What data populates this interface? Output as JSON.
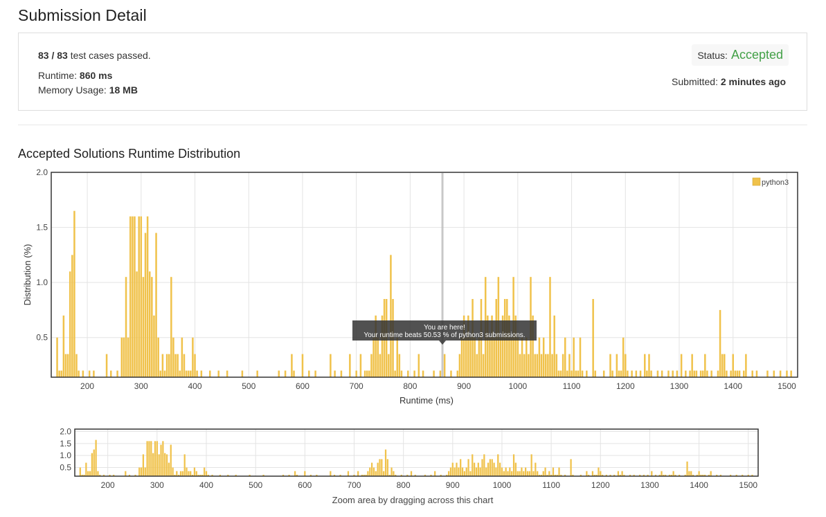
{
  "page": {
    "title": "Submission Detail"
  },
  "submission": {
    "tests_passed": "83 / 83",
    "tests_suffix": "test cases passed.",
    "runtime_label": "Runtime:",
    "runtime_value": "860 ms",
    "memory_label": "Memory Usage:",
    "memory_value": "18 MB",
    "status_label": "Status:",
    "status_value": "Accepted",
    "submitted_label": "Submitted:",
    "submitted_value": "2 minutes ago"
  },
  "colors": {
    "bar": "#f0c24b",
    "accepted": "#43a047",
    "tooltip_bg": "#333333"
  },
  "distribution": {
    "title": "Accepted Solutions Runtime Distribution"
  },
  "chart_data": [
    {
      "type": "bar",
      "title": "Accepted Solutions Runtime Distribution",
      "xlabel": "Runtime (ms)",
      "ylabel": "Distribution (%)",
      "xlim": [
        133,
        1520
      ],
      "ylim": [
        0.14,
        2.0
      ],
      "xticks": [
        200,
        300,
        400,
        500,
        600,
        700,
        800,
        900,
        1000,
        1100,
        1200,
        1300,
        1400,
        1500
      ],
      "yticks": [
        0.5,
        1.0,
        1.5,
        2.0
      ],
      "legend": {
        "label": "python3",
        "position": "top-right"
      },
      "marker": {
        "x": 860,
        "title": "You are here!",
        "text": "Your runtime beats 50.53 % of python3 submissions."
      },
      "series": [
        {
          "name": "python3",
          "bin_width": 4,
          "points": [
            [
              144,
              0.5
            ],
            [
              148,
              0.2
            ],
            [
              152,
              0.2
            ],
            [
              156,
              0.7
            ],
            [
              160,
              0.35
            ],
            [
              164,
              0.35
            ],
            [
              168,
              1.1
            ],
            [
              172,
              1.25
            ],
            [
              176,
              1.65
            ],
            [
              180,
              0.35
            ],
            [
              184,
              0.2
            ],
            [
              192,
              0.2
            ],
            [
              204,
              0.2
            ],
            [
              212,
              0.2
            ],
            [
              236,
              0.35
            ],
            [
              244,
              0.2
            ],
            [
              256,
              0.2
            ],
            [
              264,
              0.5
            ],
            [
              268,
              0.5
            ],
            [
              272,
              1.05
            ],
            [
              276,
              0.5
            ],
            [
              280,
              1.6
            ],
            [
              284,
              1.6
            ],
            [
              288,
              1.6
            ],
            [
              292,
              1.1
            ],
            [
              296,
              1.6
            ],
            [
              300,
              1.6
            ],
            [
              304,
              1.05
            ],
            [
              308,
              1.45
            ],
            [
              312,
              1.6
            ],
            [
              316,
              1.1
            ],
            [
              320,
              1.05
            ],
            [
              324,
              0.7
            ],
            [
              328,
              1.45
            ],
            [
              332,
              0.5
            ],
            [
              336,
              0.2
            ],
            [
              340,
              0.35
            ],
            [
              344,
              0.2
            ],
            [
              348,
              0.35
            ],
            [
              352,
              0.35
            ],
            [
              356,
              1.05
            ],
            [
              360,
              0.5
            ],
            [
              364,
              0.35
            ],
            [
              368,
              0.35
            ],
            [
              372,
              0.2
            ],
            [
              376,
              0.5
            ],
            [
              380,
              0.35
            ],
            [
              384,
              0.2
            ],
            [
              388,
              0.2
            ],
            [
              392,
              0.2
            ],
            [
              396,
              0.5
            ],
            [
              400,
              0.35
            ],
            [
              404,
              0.2
            ],
            [
              412,
              0.2
            ],
            [
              428,
              0.2
            ],
            [
              444,
              0.2
            ],
            [
              460,
              0.2
            ],
            [
              488,
              0.2
            ],
            [
              516,
              0.2
            ],
            [
              556,
              0.2
            ],
            [
              568,
              0.2
            ],
            [
              580,
              0.35
            ],
            [
              584,
              0.2
            ],
            [
              600,
              0.35
            ],
            [
              612,
              0.2
            ],
            [
              624,
              0.2
            ],
            [
              652,
              0.35
            ],
            [
              660,
              0.2
            ],
            [
              672,
              0.2
            ],
            [
              688,
              0.35
            ],
            [
              700,
              0.2
            ],
            [
              708,
              0.35
            ],
            [
              716,
              0.2
            ],
            [
              720,
              0.2
            ],
            [
              724,
              0.2
            ],
            [
              728,
              0.35
            ],
            [
              732,
              0.5
            ],
            [
              736,
              0.7
            ],
            [
              740,
              0.5
            ],
            [
              744,
              0.35
            ],
            [
              748,
              0.7
            ],
            [
              752,
              0.85
            ],
            [
              756,
              0.85
            ],
            [
              760,
              0.35
            ],
            [
              764,
              1.25
            ],
            [
              768,
              0.85
            ],
            [
              772,
              0.2
            ],
            [
              776,
              0.5
            ],
            [
              780,
              0.35
            ],
            [
              784,
              0.2
            ],
            [
              796,
              0.2
            ],
            [
              808,
              0.2
            ],
            [
              816,
              0.35
            ],
            [
              824,
              0.2
            ],
            [
              844,
              0.2
            ],
            [
              856,
              0.2
            ],
            [
              864,
              0.35
            ],
            [
              876,
              0.2
            ],
            [
              888,
              0.2
            ],
            [
              892,
              0.35
            ],
            [
              896,
              0.5
            ],
            [
              900,
              0.7
            ],
            [
              904,
              0.5
            ],
            [
              908,
              0.7
            ],
            [
              912,
              0.5
            ],
            [
              916,
              0.85
            ],
            [
              920,
              0.5
            ],
            [
              924,
              0.35
            ],
            [
              928,
              0.5
            ],
            [
              932,
              0.85
            ],
            [
              936,
              0.35
            ],
            [
              940,
              1.05
            ],
            [
              944,
              0.7
            ],
            [
              948,
              0.5
            ],
            [
              952,
              0.7
            ],
            [
              956,
              0.5
            ],
            [
              960,
              0.85
            ],
            [
              964,
              1.05
            ],
            [
              968,
              0.5
            ],
            [
              972,
              0.7
            ],
            [
              976,
              0.85
            ],
            [
              980,
              0.85
            ],
            [
              984,
              0.7
            ],
            [
              988,
              0.5
            ],
            [
              992,
              1.05
            ],
            [
              996,
              0.7
            ],
            [
              1000,
              0.5
            ],
            [
              1004,
              0.35
            ],
            [
              1008,
              0.5
            ],
            [
              1012,
              0.35
            ],
            [
              1016,
              0.5
            ],
            [
              1020,
              0.35
            ],
            [
              1024,
              1.05
            ],
            [
              1028,
              0.7
            ],
            [
              1032,
              0.35
            ],
            [
              1036,
              0.35
            ],
            [
              1040,
              0.5
            ],
            [
              1044,
              0.35
            ],
            [
              1048,
              0.5
            ],
            [
              1052,
              0.35
            ],
            [
              1056,
              0.35
            ],
            [
              1060,
              1.05
            ],
            [
              1064,
              0.35
            ],
            [
              1068,
              0.7
            ],
            [
              1072,
              0.35
            ],
            [
              1076,
              0.2
            ],
            [
              1080,
              0.2
            ],
            [
              1084,
              0.35
            ],
            [
              1088,
              0.5
            ],
            [
              1092,
              0.2
            ],
            [
              1096,
              0.35
            ],
            [
              1100,
              0.2
            ],
            [
              1104,
              0.5
            ],
            [
              1108,
              0.2
            ],
            [
              1112,
              0.2
            ],
            [
              1116,
              0.5
            ],
            [
              1120,
              0.2
            ],
            [
              1128,
              0.2
            ],
            [
              1140,
              0.85
            ],
            [
              1144,
              0.2
            ],
            [
              1160,
              0.2
            ],
            [
              1172,
              0.35
            ],
            [
              1176,
              0.2
            ],
            [
              1184,
              0.35
            ],
            [
              1188,
              0.2
            ],
            [
              1192,
              0.2
            ],
            [
              1196,
              0.5
            ],
            [
              1200,
              0.35
            ],
            [
              1204,
              0.2
            ],
            [
              1212,
              0.2
            ],
            [
              1220,
              0.2
            ],
            [
              1228,
              0.2
            ],
            [
              1236,
              0.35
            ],
            [
              1240,
              0.2
            ],
            [
              1244,
              0.35
            ],
            [
              1248,
              0.2
            ],
            [
              1260,
              0.2
            ],
            [
              1268,
              0.2
            ],
            [
              1280,
              0.2
            ],
            [
              1288,
              0.2
            ],
            [
              1296,
              0.2
            ],
            [
              1304,
              0.35
            ],
            [
              1312,
              0.2
            ],
            [
              1320,
              0.2
            ],
            [
              1324,
              0.35
            ],
            [
              1328,
              0.2
            ],
            [
              1332,
              0.2
            ],
            [
              1340,
              0.2
            ],
            [
              1344,
              0.2
            ],
            [
              1348,
              0.35
            ],
            [
              1352,
              0.2
            ],
            [
              1360,
              0.2
            ],
            [
              1372,
              0.2
            ],
            [
              1376,
              0.75
            ],
            [
              1380,
              0.35
            ],
            [
              1384,
              0.35
            ],
            [
              1388,
              0.2
            ],
            [
              1396,
              0.2
            ],
            [
              1400,
              0.35
            ],
            [
              1404,
              0.2
            ],
            [
              1408,
              0.2
            ],
            [
              1412,
              0.2
            ],
            [
              1420,
              0.2
            ],
            [
              1424,
              0.35
            ],
            [
              1436,
              0.2
            ],
            [
              1444,
              0.2
            ],
            [
              1464,
              0.2
            ],
            [
              1476,
              0.2
            ],
            [
              1488,
              0.2
            ],
            [
              1500,
              0.2
            ],
            [
              1508,
              0.2
            ]
          ]
        }
      ]
    },
    {
      "type": "bar",
      "title": "",
      "xlabel": "Zoom area by dragging across this chart",
      "ylabel": "",
      "xlim": [
        133,
        1520
      ],
      "ylim": [
        0.14,
        2.1
      ],
      "xticks": [
        200,
        300,
        400,
        500,
        600,
        700,
        800,
        900,
        1000,
        1100,
        1200,
        1300,
        1400,
        1500
      ],
      "yticks": [
        0.5,
        1.0,
        1.5,
        2.0
      ],
      "series_ref": "python3"
    }
  ]
}
